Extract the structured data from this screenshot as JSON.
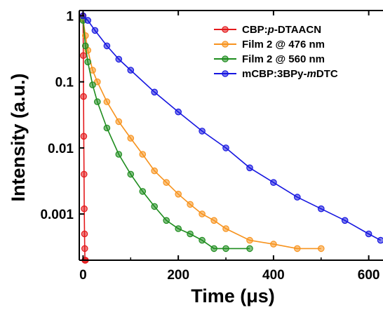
{
  "chart_data": {
    "type": "scatter",
    "title": "",
    "xlabel": "Time (μs)",
    "ylabel": "Intensity (a.u.)",
    "xlim": [
      -8,
      630
    ],
    "ylim": [
      0.0002,
      1.2
    ],
    "yscale": "log",
    "x_ticks": [
      0,
      200,
      400,
      600
    ],
    "x_tick_labels": [
      "0",
      "200",
      "400",
      "600"
    ],
    "y_ticks": [
      1,
      0.1,
      0.01,
      0.001
    ],
    "y_tick_labels": [
      "1",
      "0.1",
      "0.01",
      "0.001"
    ],
    "grid": false,
    "legend_position": "top-right",
    "series": [
      {
        "name": "CBP:p-DTAACN",
        "label_parts": [
          {
            "t": "CBP:",
            "i": false
          },
          {
            "t": "p",
            "i": true
          },
          {
            "t": "-DTAACN",
            "i": false
          }
        ],
        "color": "#e41a1c",
        "x": [
          0,
          0.5,
          1,
          1.5,
          2,
          2.5,
          3,
          3.5,
          4,
          4.5,
          5
        ],
        "y": [
          1.0,
          0.25,
          0.06,
          0.015,
          0.004,
          0.0012,
          0.0005,
          0.0003,
          0.0002,
          0.0002,
          0.0002
        ]
      },
      {
        "name": "Film 2 @ 476 nm",
        "color": "#f7931e",
        "x": [
          0,
          5,
          10,
          20,
          30,
          50,
          75,
          100,
          125,
          150,
          175,
          200,
          225,
          250,
          275,
          300,
          350,
          400,
          450,
          500
        ],
        "y": [
          0.9,
          0.5,
          0.3,
          0.15,
          0.1,
          0.05,
          0.025,
          0.014,
          0.008,
          0.0045,
          0.003,
          0.002,
          0.0014,
          0.001,
          0.0008,
          0.0006,
          0.0004,
          0.00035,
          0.0003,
          0.0003
        ]
      },
      {
        "name": "Film 2 @ 560 nm",
        "color": "#1e8c1e",
        "x": [
          0,
          5,
          10,
          20,
          30,
          50,
          75,
          100,
          125,
          150,
          175,
          200,
          225,
          250,
          275,
          300,
          350
        ],
        "y": [
          0.85,
          0.35,
          0.2,
          0.09,
          0.05,
          0.02,
          0.008,
          0.004,
          0.0022,
          0.0013,
          0.0008,
          0.0006,
          0.0005,
          0.0004,
          0.0003,
          0.0003,
          0.0003
        ]
      },
      {
        "name": "mCBP:3BPy-mDTC",
        "label_parts": [
          {
            "t": "mCBP:3BPy-",
            "i": false
          },
          {
            "t": "m",
            "i": true
          },
          {
            "t": "DTC",
            "i": false
          }
        ],
        "color": "#1616e0",
        "x": [
          0,
          10,
          25,
          50,
          75,
          100,
          150,
          200,
          250,
          300,
          350,
          400,
          450,
          500,
          550,
          600,
          625
        ],
        "y": [
          1.0,
          0.85,
          0.6,
          0.35,
          0.22,
          0.15,
          0.07,
          0.035,
          0.018,
          0.01,
          0.005,
          0.003,
          0.0018,
          0.0012,
          0.0008,
          0.0005,
          0.0004
        ]
      }
    ]
  }
}
